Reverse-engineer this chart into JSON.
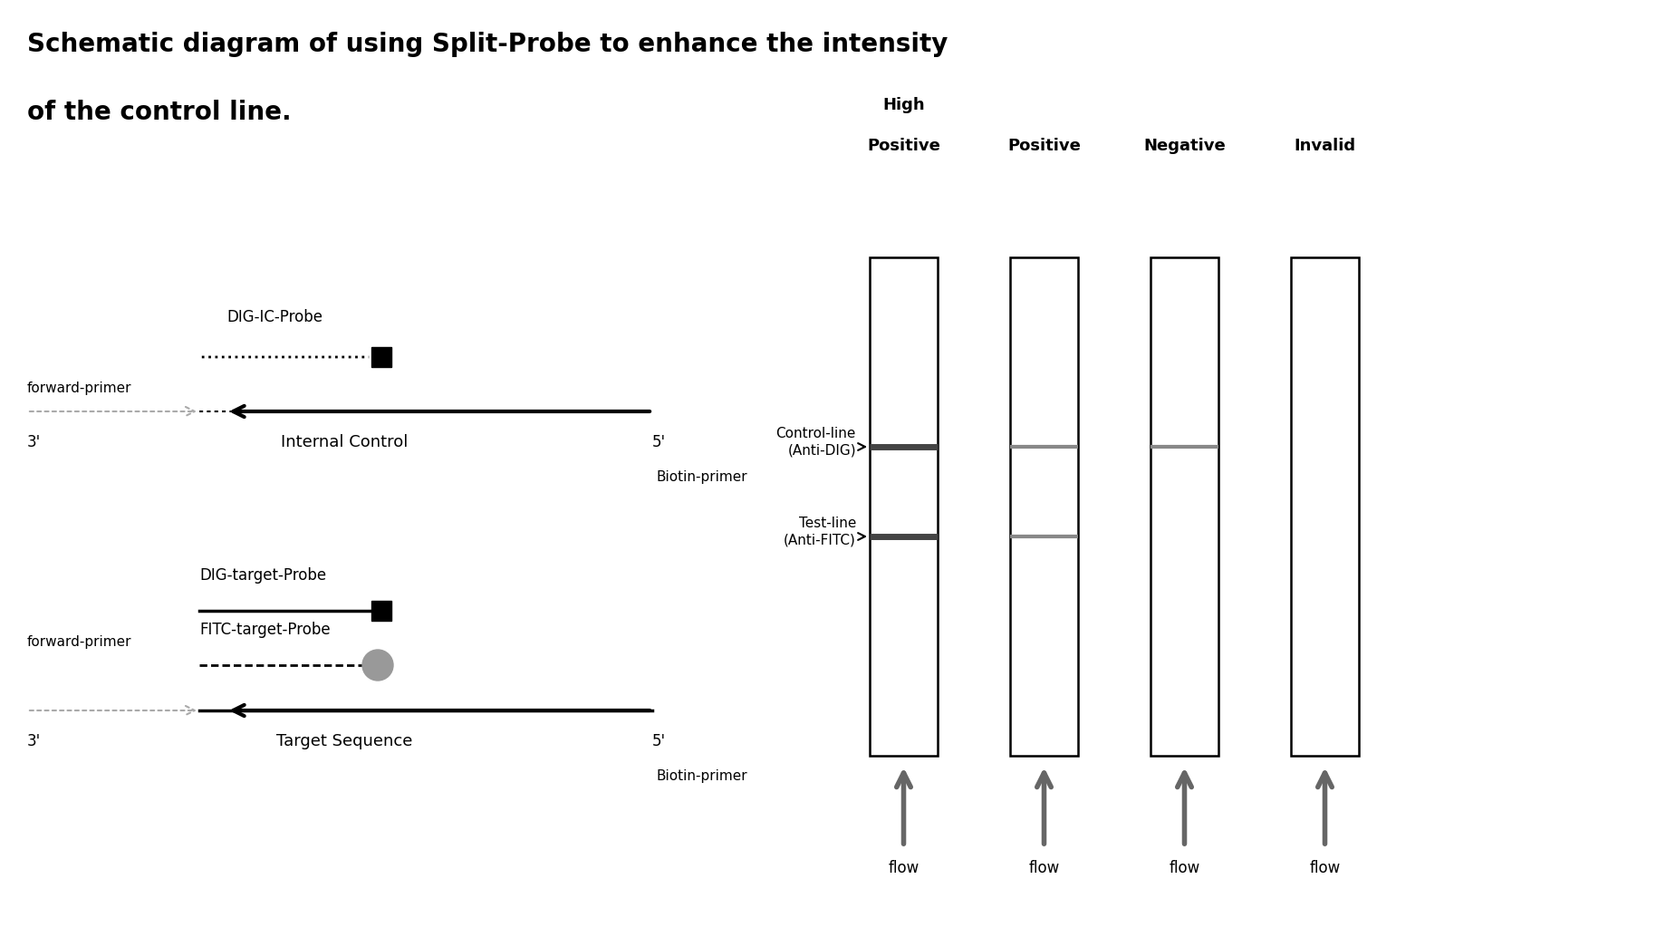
{
  "title_line1": "Schematic diagram of using Split-Probe to enhance the intensity",
  "title_line2": "of the control line.",
  "bg_color": "#ffffff",
  "fig_width": 18.28,
  "fig_height": 10.34,
  "left_panel": {
    "ic_probe_label": "DIG-IC-Probe",
    "ic_fwd_label": "forward-primer",
    "ic_3prime": "3'",
    "ic_5prime": "5'",
    "ic_seq_label": "Internal Control",
    "ic_biotin_label": "Biotin-primer",
    "tgt_dig_label": "DIG-target-Probe",
    "tgt_fitc_label": "FITC-target-Probe",
    "tgt_fwd_label": "forward-primer",
    "tgt_3prime": "3'",
    "tgt_5prime": "5'",
    "tgt_seq_label": "Target Sequence",
    "tgt_biotin_label": "Biotin-primer"
  },
  "right_panel": {
    "col_labels": [
      "High\nPositive",
      "Positive",
      "Negative",
      "Invalid"
    ],
    "control_line_label": "Control-line\n(Anti-DIG)",
    "test_line_label": "Test-line\n(Anti-FITC)",
    "flow_label": "flow",
    "strips": [
      {
        "has_control": true,
        "control_dark": true,
        "has_test": true,
        "test_dark": true
      },
      {
        "has_control": true,
        "control_dark": false,
        "has_test": true,
        "test_dark": false
      },
      {
        "has_control": true,
        "control_dark": false,
        "has_test": false,
        "test_dark": false
      },
      {
        "has_control": false,
        "control_dark": false,
        "has_test": false,
        "test_dark": false
      }
    ]
  }
}
